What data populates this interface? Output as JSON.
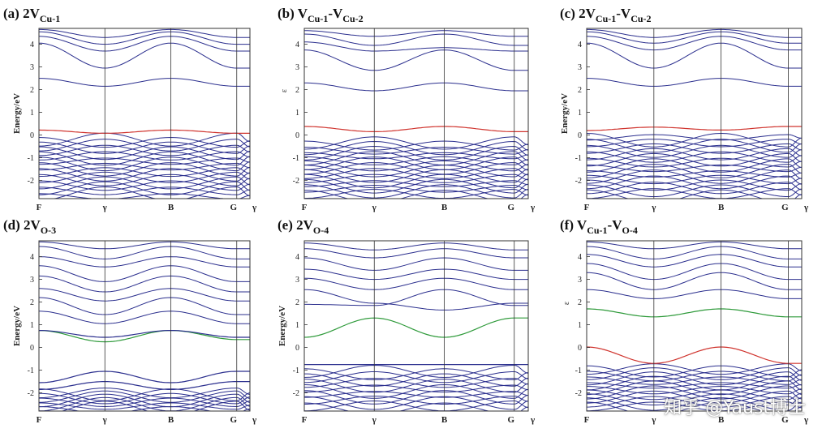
{
  "watermark": "知乎 @Yaust博士",
  "chart_data": [
    {
      "type": "line",
      "panel": "a",
      "title_prefix": "(a) 2V",
      "title_sub": "Cu-1",
      "ylabel": "Energy/eV",
      "ylim": [
        -2.8,
        4.7
      ],
      "yticks": [
        -2,
        -1,
        0,
        1,
        2,
        3,
        4
      ],
      "kpoints": [
        "F",
        "γ",
        "B",
        "G",
        "γ"
      ],
      "kpos": [
        0,
        1,
        2,
        3,
        3.2
      ],
      "colors": {
        "valence": "#2b2f8e",
        "conduction": "#2b2f8e",
        "defect1": "#d0352f",
        "defect2": "#2e9a3a"
      },
      "conduction_bands": [
        [
          2.5,
          2.15,
          2.5,
          2.15,
          2.15
        ],
        [
          4.05,
          2.95,
          4.05,
          2.95,
          2.95
        ],
        [
          4.35,
          3.7,
          4.35,
          3.7,
          3.7
        ],
        [
          4.55,
          4.0,
          4.55,
          4.0,
          4.0
        ],
        [
          4.65,
          4.3,
          4.65,
          4.3,
          4.3
        ]
      ],
      "defect_bands": [
        {
          "color": "defect1",
          "values": [
            0.22,
            0.08,
            0.22,
            0.08,
            0.08
          ]
        }
      ],
      "valence_band_count": 22,
      "valence_range": [
        -2.7,
        -0.2
      ]
    },
    {
      "type": "line",
      "panel": "b",
      "title_prefix": "(b) V",
      "title_sub": "Cu-1",
      "title_mid": "-V",
      "title_sub2": "Cu-2",
      "ylabel": "",
      "ylabel_mark": "ɛ",
      "ylim": [
        -2.8,
        4.7
      ],
      "yticks": [
        -2,
        -1,
        0,
        1,
        2,
        3,
        4
      ],
      "kpoints": [
        "F",
        "γ",
        "B",
        "G",
        "γ"
      ],
      "kpos": [
        0,
        1,
        2,
        3,
        3.2
      ],
      "conduction_bands": [
        [
          2.3,
          1.95,
          2.3,
          1.95,
          1.95
        ],
        [
          3.75,
          2.85,
          3.75,
          2.85,
          2.85
        ],
        [
          4.1,
          3.7,
          3.85,
          3.7,
          3.7
        ],
        [
          4.45,
          3.95,
          4.45,
          3.95,
          3.95
        ],
        [
          4.6,
          4.35,
          4.6,
          4.35,
          4.35
        ]
      ],
      "defect_bands": [
        {
          "color": "defect1",
          "values": [
            0.38,
            0.15,
            0.38,
            0.15,
            0.15
          ]
        }
      ],
      "valence_band_count": 22,
      "valence_range": [
        -2.7,
        -0.35
      ]
    },
    {
      "type": "line",
      "panel": "c",
      "title_prefix": "(c) 2V",
      "title_sub": "Cu-1",
      "title_mid": "-V",
      "title_sub2": "Cu-2",
      "ylabel": "Energy/eV",
      "ylim": [
        -2.8,
        4.7
      ],
      "yticks": [
        -2,
        -1,
        0,
        1,
        2,
        3,
        4
      ],
      "kpoints": [
        "F",
        "γ",
        "B",
        "G",
        "γ"
      ],
      "kpos": [
        0,
        1,
        2,
        3,
        3.2
      ],
      "conduction_bands": [
        [
          2.5,
          2.15,
          2.5,
          2.15,
          2.15
        ],
        [
          4.05,
          2.95,
          4.05,
          2.95,
          2.95
        ],
        [
          4.35,
          3.75,
          4.35,
          3.75,
          3.75
        ],
        [
          4.55,
          4.05,
          4.55,
          4.05,
          4.05
        ],
        [
          4.65,
          4.3,
          4.65,
          4.3,
          4.3
        ]
      ],
      "defect_bands": [
        {
          "color": "defect1",
          "values": [
            0.2,
            0.35,
            0.22,
            0.38,
            0.38
          ]
        }
      ],
      "valence_band_count": 22,
      "valence_range": [
        -2.7,
        -0.1
      ]
    },
    {
      "type": "line",
      "panel": "d",
      "title_prefix": "(d) 2V",
      "title_sub": "O-3",
      "ylabel": "Energy/eV",
      "ylim": [
        -2.8,
        4.7
      ],
      "yticks": [
        -2,
        -1,
        0,
        1,
        2,
        3,
        4
      ],
      "kpoints": [
        "F",
        "γ",
        "B",
        "G",
        "γ"
      ],
      "kpos": [
        0,
        1,
        2,
        3,
        3.2
      ],
      "conduction_bands": [
        [
          1.6,
          1.05,
          1.6,
          1.05,
          1.05
        ],
        [
          2.2,
          1.45,
          2.2,
          1.45,
          1.45
        ],
        [
          2.6,
          2.05,
          2.6,
          2.05,
          2.05
        ],
        [
          3.15,
          2.45,
          3.15,
          2.45,
          2.45
        ],
        [
          3.6,
          2.9,
          3.6,
          2.9,
          2.9
        ],
        [
          4.0,
          3.55,
          4.0,
          3.55,
          3.55
        ],
        [
          4.45,
          3.9,
          4.45,
          3.9,
          3.9
        ],
        [
          4.65,
          4.35,
          4.65,
          4.35,
          4.35
        ]
      ],
      "defect_bands": [
        {
          "color": "defect2",
          "values": [
            0.75,
            0.25,
            0.75,
            0.35,
            0.35
          ]
        },
        {
          "color": "valence",
          "values": [
            0.75,
            0.45,
            0.75,
            0.45,
            0.45
          ]
        },
        {
          "color": "valence",
          "values": [
            -1.55,
            -1.05,
            -1.55,
            -1.05,
            -1.05
          ]
        },
        {
          "color": "valence",
          "values": [
            -1.85,
            -1.5,
            -1.85,
            -1.5,
            -1.5
          ]
        }
      ],
      "valence_band_count": 10,
      "valence_range": [
        -2.75,
        -2.0
      ]
    },
    {
      "type": "line",
      "panel": "e",
      "title_prefix": "(e) 2V",
      "title_sub": "O-4",
      "ylabel": "Energy/eV",
      "ylim": [
        -2.8,
        4.7
      ],
      "yticks": [
        -2,
        -1,
        0,
        1,
        2,
        3,
        4
      ],
      "kpoints": [
        "F",
        "γ",
        "B",
        "G",
        "γ"
      ],
      "kpos": [
        0,
        1,
        2,
        3,
        3.2
      ],
      "conduction_bands": [
        [
          1.9,
          1.85,
          2.55,
          1.85,
          1.85
        ],
        [
          2.55,
          1.95,
          1.65,
          1.95,
          1.95
        ],
        [
          3.05,
          2.55,
          3.05,
          2.55,
          2.55
        ],
        [
          3.45,
          3.0,
          3.45,
          3.0,
          3.0
        ],
        [
          3.95,
          3.4,
          3.95,
          3.4,
          3.4
        ],
        [
          4.35,
          3.95,
          4.35,
          3.95,
          3.95
        ],
        [
          4.6,
          4.3,
          4.6,
          4.3,
          4.3
        ]
      ],
      "defect_bands": [
        {
          "color": "defect2",
          "values": [
            0.45,
            1.3,
            0.45,
            1.3,
            1.3
          ]
        },
        {
          "color": "valence",
          "values": [
            -0.75,
            -0.75,
            -0.75,
            -0.75,
            -0.75
          ]
        }
      ],
      "valence_band_count": 14,
      "valence_range": [
        -2.7,
        -1.05
      ]
    },
    {
      "type": "line",
      "panel": "f",
      "title_prefix": "(f) V",
      "title_sub": "Cu-1",
      "title_mid": "-V",
      "title_sub2": "O-4",
      "ylabel": "",
      "ylabel_mark": "ɛ",
      "ylim": [
        -2.8,
        4.7
      ],
      "yticks": [
        -2,
        -1,
        0,
        1,
        2,
        3,
        4
      ],
      "kpoints": [
        "F",
        "γ",
        "B",
        "G",
        "γ"
      ],
      "kpos": [
        0,
        1,
        2,
        3,
        3.2
      ],
      "conduction_bands": [
        [
          2.55,
          2.15,
          2.55,
          2.15,
          2.15
        ],
        [
          3.3,
          2.55,
          3.3,
          2.55,
          2.55
        ],
        [
          3.7,
          3.0,
          3.7,
          3.0,
          3.0
        ],
        [
          4.1,
          3.55,
          4.1,
          3.55,
          3.55
        ],
        [
          4.45,
          3.9,
          4.45,
          3.9,
          3.9
        ],
        [
          4.65,
          4.35,
          4.65,
          4.35,
          4.35
        ]
      ],
      "defect_bands": [
        {
          "color": "defect2",
          "values": [
            1.7,
            1.35,
            1.7,
            1.35,
            1.35
          ]
        },
        {
          "color": "defect1",
          "values": [
            0.02,
            -0.7,
            0.02,
            -0.7,
            -0.7
          ]
        }
      ],
      "valence_band_count": 18,
      "valence_range": [
        -2.7,
        -0.95
      ]
    }
  ]
}
